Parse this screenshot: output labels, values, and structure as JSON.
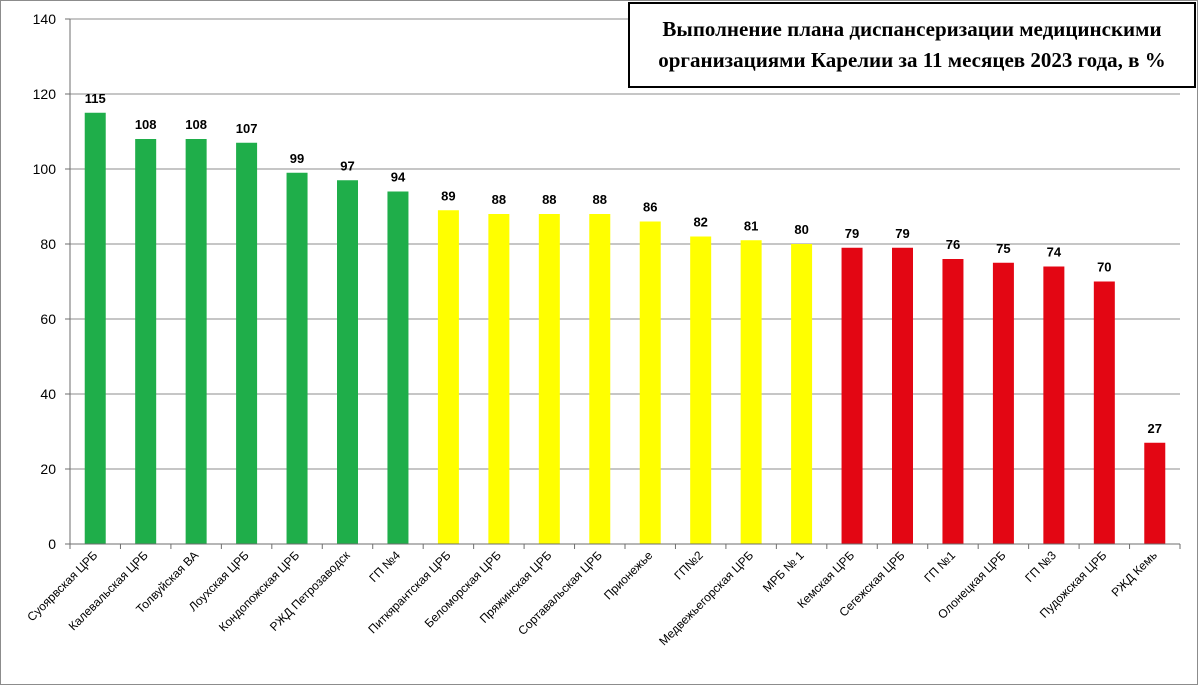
{
  "chart_data": {
    "type": "bar",
    "title": "Выполнение плана диспансеризации медицинскими\nорганизациями Карелии за 11 месяцев 2023 года, в %",
    "xlabel": "",
    "ylabel": "",
    "ylim": [
      0,
      140
    ],
    "yticks": [
      "0",
      "20",
      "40",
      "60",
      "80",
      "100",
      "120",
      "140"
    ],
    "grid": true,
    "legend": "none",
    "categories": [
      "Суоярвская ЦРБ",
      "Калевальская ЦРБ",
      "Толвуйская ВА",
      "Лоухская ЦРБ",
      "Кондопожская ЦРБ",
      "РЖД Петрозаводск",
      "ГП №4",
      "Питкярантская ЦРБ",
      "Беломорская ЦРБ",
      "Пряжинская ЦРБ",
      "Сортавальская ЦРБ",
      "Прионежье",
      "ГП№2",
      "Медвежьегорская ЦРБ",
      "МРБ № 1",
      "Кемская ЦРБ",
      "Сегежская ЦРБ",
      "ГП №1",
      "Олонецкая ЦРБ",
      "ГП №3",
      "Пудожская ЦРБ",
      "РЖД Кемь"
    ],
    "values": [
      115,
      108,
      108,
      107,
      99,
      97,
      94,
      89,
      88,
      88,
      88,
      86,
      82,
      81,
      80,
      79,
      79,
      76,
      75,
      74,
      70,
      27
    ],
    "value_labels": [
      "115",
      "108",
      "108",
      "107",
      "99",
      "97",
      "94",
      "89",
      "88",
      "88",
      "88",
      "86",
      "82",
      "81",
      "80",
      "79",
      "79",
      "76",
      "75",
      "74",
      "70",
      "27"
    ],
    "bar_colors": [
      "#1fae4a",
      "#1fae4a",
      "#1fae4a",
      "#1fae4a",
      "#1fae4a",
      "#1fae4a",
      "#1fae4a",
      "#ffff00",
      "#ffff00",
      "#ffff00",
      "#ffff00",
      "#ffff00",
      "#ffff00",
      "#ffff00",
      "#ffff00",
      "#e30613",
      "#e30613",
      "#e30613",
      "#e30613",
      "#e30613",
      "#e30613",
      "#e30613"
    ]
  },
  "colors": {
    "grid": "#8c8c8c",
    "axis": "#6e6e6e",
    "border": "#000000"
  }
}
